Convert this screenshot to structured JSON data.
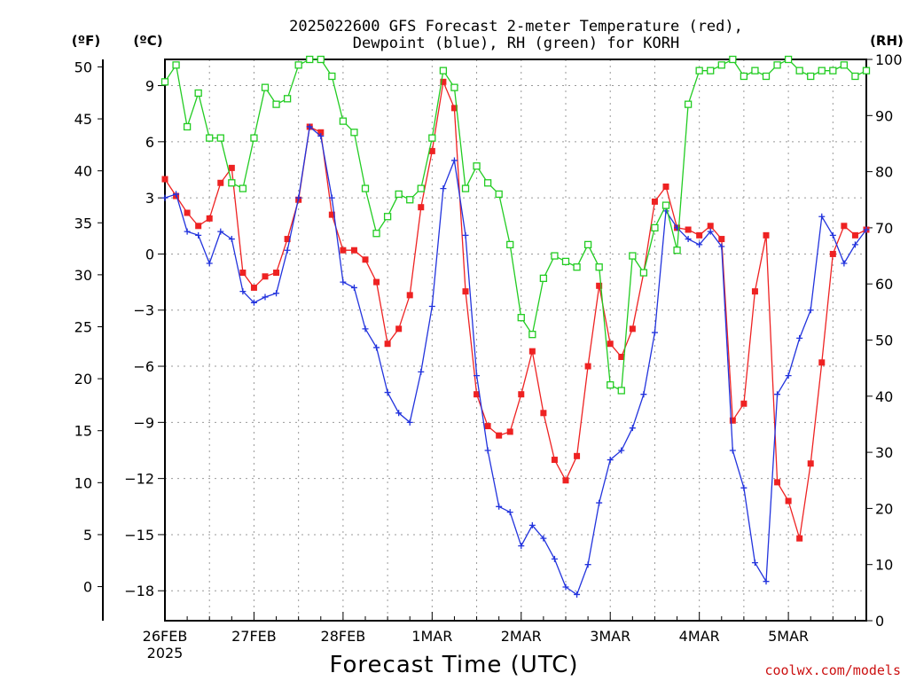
{
  "colors": {
    "temperature": "#ee2222",
    "dewpoint": "#2233dd",
    "rh": "#22cc22",
    "credit": "#cc1111",
    "grid": "#999999"
  },
  "chart_data": {
    "type": "line",
    "title_line1": "2025022600 GFS Forecast 2-meter Temperature (red),",
    "title_line2": "Dewpoint (blue), RH (green) for KORH",
    "xlabel": "Forecast Time (UTC)",
    "credit": "coolwx.com/models",
    "units": {
      "fahrenheit": "(ºF)",
      "celsius": "(ºC)",
      "rh": "(RH)"
    },
    "x_ticks": [
      "26FEB",
      "27FEB",
      "28FEB",
      "1MAR",
      "2MAR",
      "3MAR",
      "4MAR",
      "5MAR"
    ],
    "x_year": "2025",
    "xlim_hours": [
      0,
      189
    ],
    "ylim_c": [
      -19.6,
      10.4
    ],
    "ylim_rh": [
      0,
      100
    ],
    "y_ticks_c": [
      "9",
      "6",
      "3",
      "0",
      "−3",
      "−6",
      "−9",
      "−12",
      "−15",
      "−18"
    ],
    "y_ticks_f": [
      "50",
      "45",
      "40",
      "35",
      "30",
      "25",
      "20",
      "15",
      "10",
      "5",
      "0"
    ],
    "y_ticks_rh": [
      "100",
      "90",
      "80",
      "70",
      "60",
      "50",
      "40",
      "30",
      "20",
      "10",
      "0"
    ],
    "grid": true,
    "series": [
      {
        "name": "Temperature",
        "unit": "C",
        "marker": "square",
        "x": [
          0,
          3,
          6,
          9,
          12,
          15,
          18,
          21,
          24,
          27,
          30,
          33,
          36,
          39,
          42,
          45,
          48,
          51,
          54,
          57,
          60,
          63,
          66,
          69,
          72,
          75,
          78,
          81,
          84,
          87,
          90,
          93,
          96,
          99,
          102,
          105,
          108,
          111,
          114,
          117,
          120,
          123,
          126,
          129,
          132,
          135,
          138,
          141,
          144,
          147,
          150,
          153,
          156,
          159,
          162,
          165,
          168,
          171,
          174,
          177,
          180,
          183,
          186,
          189
        ],
        "values": [
          4.0,
          3.1,
          2.2,
          1.5,
          1.9,
          3.8,
          4.6,
          -1.0,
          -1.8,
          -1.2,
          -1.0,
          0.8,
          2.9,
          6.8,
          6.5,
          2.1,
          0.2,
          0.2,
          -0.3,
          -1.5,
          -4.8,
          -4.0,
          -2.2,
          2.5,
          5.5,
          9.2,
          7.8,
          -2.0,
          -7.5,
          -9.2,
          -9.7,
          -9.5,
          -7.5,
          -5.2,
          -8.5,
          -11.0,
          -12.1,
          -10.8,
          -6.0,
          -1.7,
          -4.8,
          -5.5,
          -4.0,
          -1.0,
          2.8,
          3.6,
          1.4,
          1.3,
          1.0,
          1.5,
          0.8,
          -8.9,
          -8.0,
          -2.0,
          1.0,
          -12.2,
          -13.2,
          -15.2,
          -11.2,
          -5.8,
          0.0,
          1.5,
          1.0,
          1.3
        ]
      },
      {
        "name": "Dewpoint",
        "unit": "C",
        "marker": "plus",
        "x": [
          0,
          3,
          6,
          9,
          12,
          15,
          18,
          21,
          24,
          27,
          30,
          33,
          36,
          39,
          42,
          45,
          48,
          51,
          54,
          57,
          60,
          63,
          66,
          69,
          72,
          75,
          78,
          81,
          84,
          87,
          90,
          93,
          96,
          99,
          102,
          105,
          108,
          111,
          114,
          117,
          120,
          123,
          126,
          129,
          132,
          135,
          138,
          141,
          144,
          147,
          150,
          153,
          156,
          159,
          162,
          165,
          168,
          171,
          174,
          177,
          180,
          183,
          186,
          189
        ],
        "values": [
          3.0,
          3.2,
          1.2,
          1.0,
          -0.5,
          1.2,
          0.8,
          -2.0,
          -2.6,
          -2.3,
          -2.1,
          0.2,
          3.0,
          6.8,
          6.3,
          3.0,
          -1.5,
          -1.8,
          -4.0,
          -5.0,
          -7.4,
          -8.5,
          -9.0,
          -6.3,
          -2.8,
          3.5,
          5.0,
          1.0,
          -6.5,
          -10.5,
          -13.5,
          -13.8,
          -15.6,
          -14.5,
          -15.2,
          -16.3,
          -17.8,
          -18.2,
          -16.6,
          -13.3,
          -11.0,
          -10.5,
          -9.3,
          -7.5,
          -4.2,
          2.3,
          1.4,
          0.8,
          0.5,
          1.2,
          0.4,
          -10.5,
          -12.5,
          -16.5,
          -17.5,
          -7.5,
          -6.5,
          -4.5,
          -3.0,
          2.0,
          1.0,
          -0.5,
          0.5,
          1.3
        ]
      },
      {
        "name": "RH",
        "unit": "%",
        "marker": "open-square",
        "x": [
          0,
          3,
          6,
          9,
          12,
          15,
          18,
          21,
          24,
          27,
          30,
          33,
          36,
          39,
          42,
          45,
          48,
          51,
          54,
          57,
          60,
          63,
          66,
          69,
          72,
          75,
          78,
          81,
          84,
          87,
          90,
          93,
          96,
          99,
          102,
          105,
          108,
          111,
          114,
          117,
          120,
          123,
          126,
          129,
          132,
          135,
          138,
          141,
          144,
          147,
          150,
          153,
          156,
          159,
          162,
          165,
          168,
          171,
          174,
          177,
          180,
          183,
          186,
          189
        ],
        "values": [
          96,
          99,
          88,
          94,
          86,
          86,
          78,
          77,
          86,
          95,
          92,
          93,
          99,
          100,
          100,
          97,
          89,
          87,
          77,
          69,
          72,
          76,
          75,
          77,
          86,
          98,
          95,
          77,
          81,
          78,
          76,
          67,
          54,
          51,
          61,
          65,
          64,
          63,
          67,
          63,
          42,
          41,
          65,
          62,
          70,
          74,
          66,
          92,
          98,
          98,
          99,
          100,
          97,
          98,
          97,
          99,
          100,
          98,
          97,
          98,
          98,
          99,
          97,
          98
        ]
      }
    ]
  }
}
